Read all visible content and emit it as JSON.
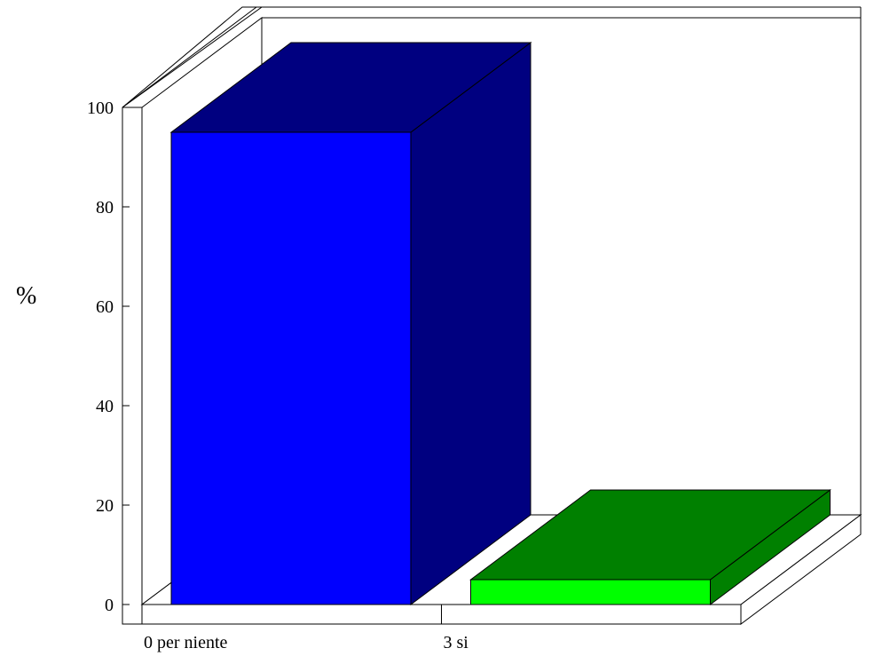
{
  "chart_data": {
    "type": "bar",
    "title": "",
    "xlabel": "",
    "ylabel": "%",
    "ylim": [
      0,
      100
    ],
    "yticks": [
      0,
      20,
      40,
      60,
      80,
      100
    ],
    "categories": [
      "0 per niente",
      "3 si"
    ],
    "values": [
      95,
      5
    ],
    "grid": false,
    "legend": "none",
    "colors": [
      {
        "front": "#0000FF",
        "top": "#000080",
        "side": "#000080"
      },
      {
        "front": "#00FF00",
        "top": "#008000",
        "side": "#008000"
      }
    ]
  }
}
